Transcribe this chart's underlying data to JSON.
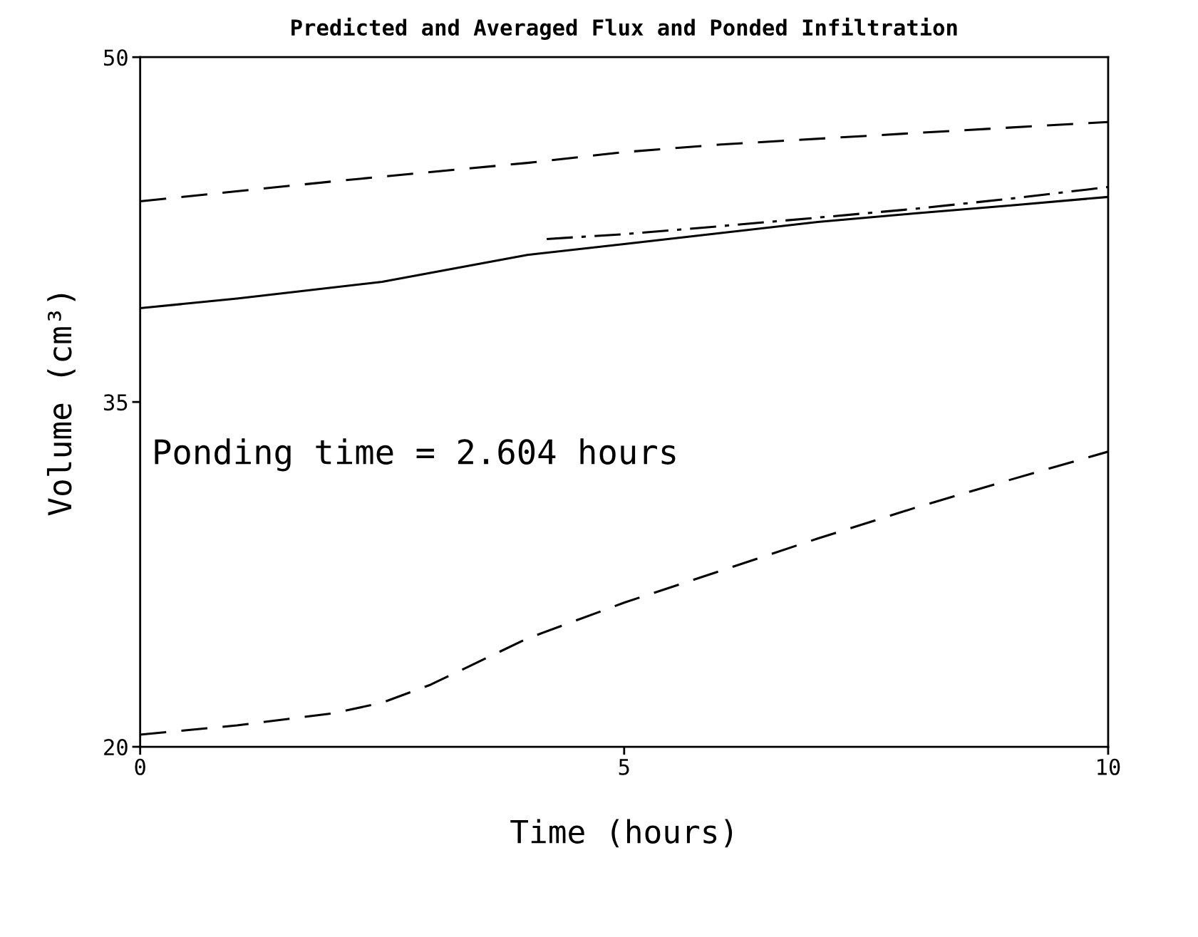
{
  "chart_data": {
    "type": "line",
    "title": "Predicted and Averaged Flux and Ponded Infiltration",
    "xlabel": "Time (hours)",
    "ylabel": "Volume (cm³)",
    "xlim": [
      0,
      10
    ],
    "xticks": [
      0,
      5,
      10
    ],
    "ylim": [
      20,
      50
    ],
    "yticks": [
      20,
      35,
      50
    ],
    "grid": false,
    "legend": false,
    "marker": "none",
    "annotations": [
      "Ponding time = 2.604 hours"
    ],
    "series": [
      {
        "color": "#000000",
        "line_style": "dashed",
        "x": [
          0,
          2,
          4,
          5,
          6,
          8,
          10
        ],
        "values": [
          43.73,
          44.6,
          45.4,
          45.87,
          46.2,
          46.7,
          47.18
        ]
      },
      {
        "color": "#000000",
        "line_style": "dashdot",
        "x": [
          4.2,
          5,
          6,
          7,
          8,
          9,
          10
        ],
        "values": [
          42.09,
          42.3,
          42.65,
          43.02,
          43.4,
          43.85,
          44.35
        ]
      },
      {
        "color": "#000000",
        "line_style": "solid",
        "x": [
          0,
          1,
          2.5,
          4,
          5,
          6,
          7,
          8,
          9,
          10
        ],
        "values": [
          39.08,
          39.5,
          40.23,
          41.4,
          41.87,
          42.35,
          42.83,
          43.2,
          43.55,
          43.92
        ]
      },
      {
        "color": "#000000",
        "line_style": "dashed",
        "x": [
          0,
          1,
          2,
          2.5,
          3,
          4,
          5,
          6,
          7,
          8,
          9,
          10
        ],
        "values": [
          20.53,
          20.93,
          21.46,
          21.92,
          22.7,
          24.71,
          26.27,
          27.66,
          29.06,
          30.39,
          31.63,
          32.84
        ]
      }
    ]
  }
}
